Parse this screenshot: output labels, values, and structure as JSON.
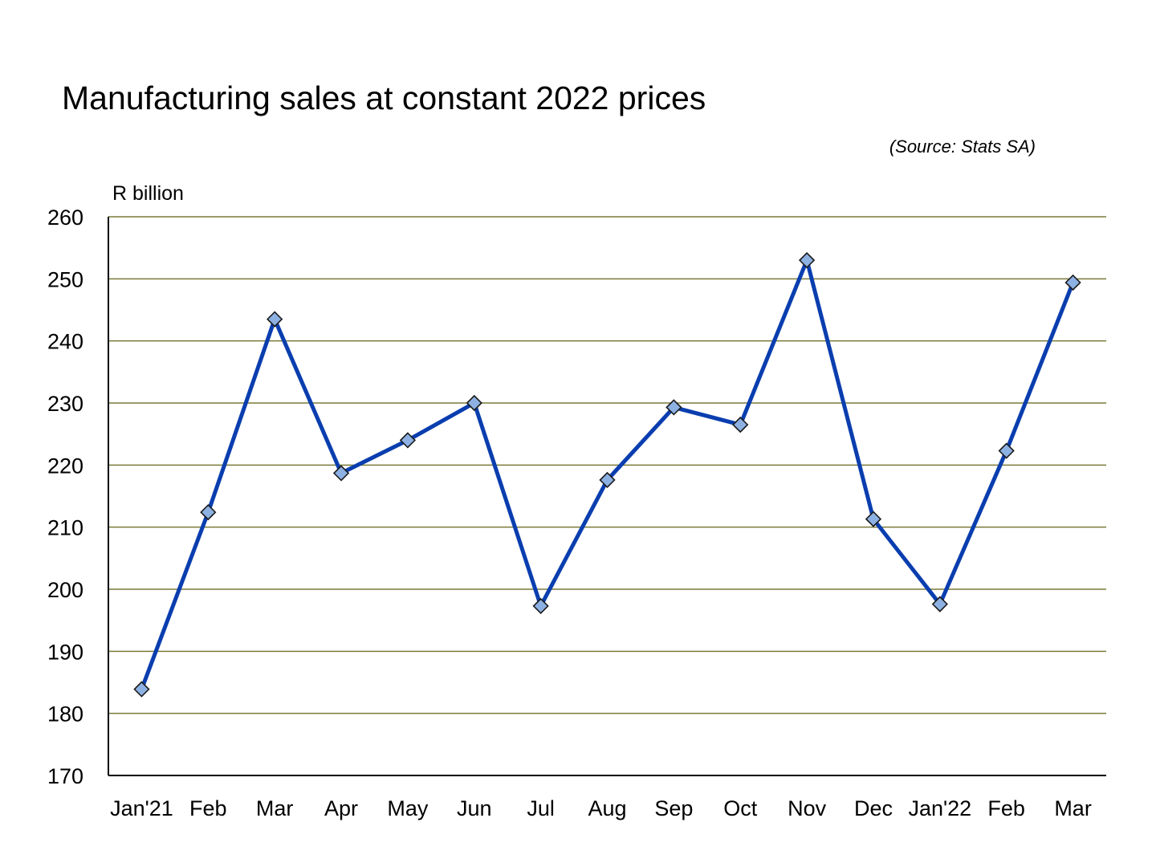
{
  "chart_data": {
    "type": "line",
    "title": "Manufacturing sales at constant 2022 prices",
    "source": "(Source: Stats SA)",
    "ylabel": "R billion",
    "xlabel": "",
    "ylim": [
      170,
      260
    ],
    "yticks": [
      170,
      180,
      190,
      200,
      210,
      220,
      230,
      240,
      250,
      260
    ],
    "ytick_labels": [
      "170",
      "180",
      "190",
      "200",
      "210",
      "220",
      "230",
      "240",
      "250",
      "260"
    ],
    "categories": [
      "Jan'21",
      "Feb",
      "Mar",
      "Apr",
      "May",
      "Jun",
      "Jul",
      "Aug",
      "Sep",
      "Oct",
      "Nov",
      "Dec",
      "Jan'22",
      "Feb",
      "Mar"
    ],
    "grid": true,
    "legend": "none",
    "series": [
      {
        "values": [
          183.9,
          212.4,
          243.5,
          218.7,
          224.0,
          230.0,
          197.3,
          217.6,
          229.3,
          226.5,
          253.0,
          211.3,
          197.6,
          222.3,
          249.4
        ]
      }
    ],
    "colors": {
      "line": "#0A3EAF",
      "marker_fill": "#8DB1E2",
      "marker_stroke": "#1A1A1A",
      "grid": "#7A7A3A",
      "axis": "#000000"
    }
  }
}
